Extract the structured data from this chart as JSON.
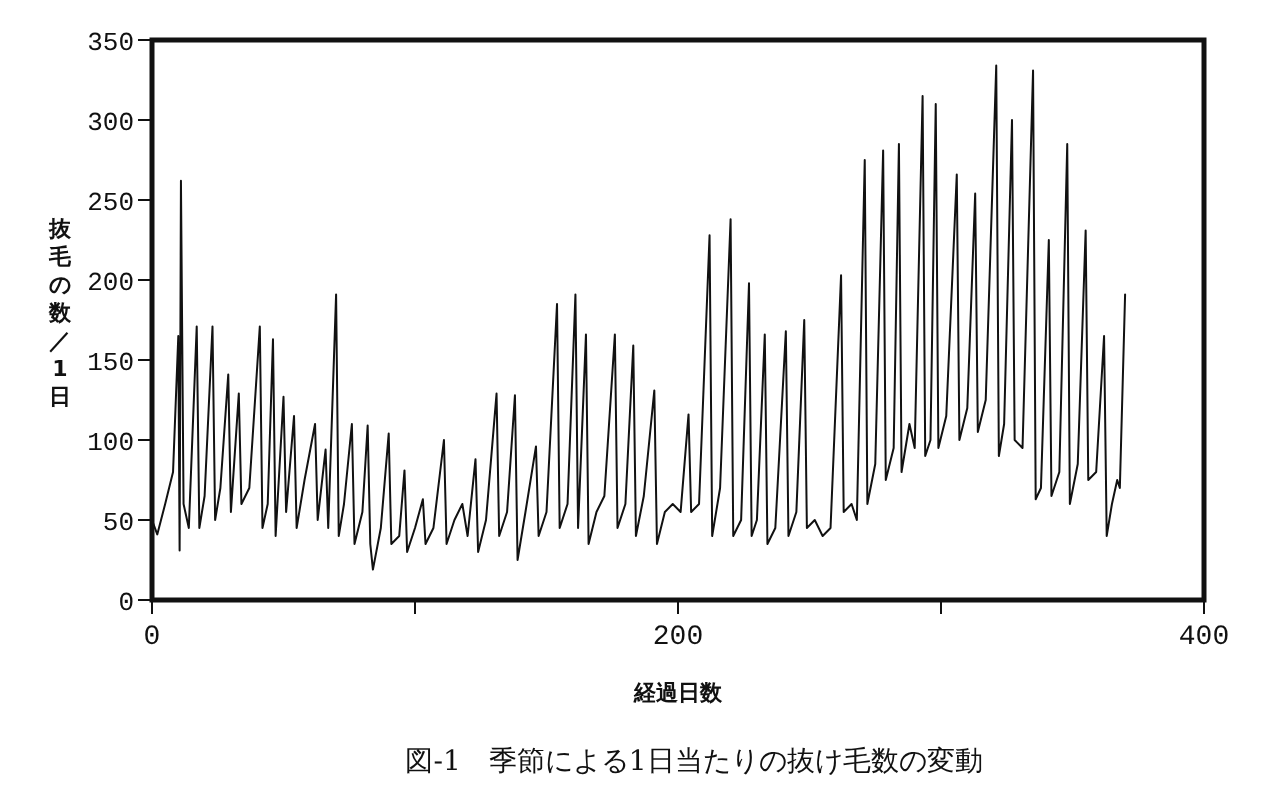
{
  "chart_data": {
    "type": "line",
    "xlabel": "経過日数",
    "ylabel": "抜毛の数／1日",
    "annotations": [
      "図-1　季節による1日当たりの抜け毛数の変動"
    ],
    "xlim": [
      0,
      400
    ],
    "xticks": [
      0,
      {
        "value": 100,
        "label": null
      },
      200,
      {
        "value": 300,
        "label": null
      },
      400
    ],
    "ylim": [
      0,
      350
    ],
    "yticks": [
      0,
      50,
      100,
      150,
      200,
      250,
      300,
      350
    ],
    "grid": false,
    "marker": "none",
    "line_style": "solid",
    "series": [
      {
        "color": "#111111",
        "x": [
          0,
          2,
          5,
          8,
          10,
          10.5,
          11,
          12,
          14,
          17,
          18,
          20,
          23,
          24,
          26,
          29,
          30,
          33,
          34,
          37,
          41,
          42,
          44,
          46,
          47,
          50,
          51,
          54,
          55,
          58,
          62,
          63,
          66,
          67,
          70,
          71,
          73,
          76,
          77,
          80,
          82,
          83,
          84,
          87,
          90,
          91,
          94,
          96,
          97,
          100,
          103,
          104,
          107,
          111,
          112,
          115,
          118,
          120,
          123,
          124,
          127,
          131,
          132,
          135,
          138,
          139,
          142,
          146,
          147,
          150,
          154,
          155,
          158,
          161,
          162,
          165,
          166,
          169,
          172,
          176,
          177,
          180,
          183,
          184,
          187,
          191,
          192,
          195,
          198,
          201,
          204,
          205,
          208,
          212,
          213,
          216,
          220,
          221,
          224,
          227,
          228,
          230,
          233,
          234,
          237,
          241,
          242,
          245,
          248,
          249,
          252,
          255,
          258,
          262,
          263,
          266,
          268,
          271,
          272,
          275,
          278,
          279,
          282,
          284,
          285,
          288,
          290,
          293,
          294,
          296,
          298,
          299,
          302,
          306,
          307,
          310,
          313,
          314,
          317,
          321,
          322,
          324,
          327,
          328,
          331,
          335,
          336,
          338,
          341,
          342,
          345,
          348,
          349,
          352,
          355,
          356,
          359,
          362,
          363,
          365,
          367,
          368,
          370
        ],
        "values": [
          50,
          41,
          60,
          80,
          165,
          31,
          262,
          60,
          45,
          171,
          45,
          65,
          171,
          50,
          70,
          141,
          55,
          129,
          60,
          70,
          171,
          45,
          60,
          163,
          40,
          127,
          55,
          115,
          45,
          75,
          110,
          50,
          94,
          45,
          191,
          40,
          60,
          110,
          35,
          55,
          109,
          35,
          19,
          45,
          104,
          35,
          40,
          81,
          30,
          45,
          63,
          35,
          45,
          100,
          35,
          50,
          60,
          40,
          88,
          30,
          50,
          129,
          40,
          55,
          128,
          25,
          55,
          96,
          40,
          55,
          185,
          45,
          60,
          191,
          45,
          166,
          35,
          55,
          65,
          166,
          45,
          60,
          159,
          40,
          65,
          131,
          35,
          55,
          60,
          55,
          116,
          55,
          60,
          228,
          40,
          70,
          238,
          40,
          50,
          198,
          40,
          50,
          166,
          35,
          45,
          168,
          40,
          55,
          175,
          45,
          50,
          40,
          45,
          203,
          55,
          60,
          50,
          275,
          60,
          85,
          281,
          75,
          95,
          285,
          80,
          110,
          95,
          315,
          90,
          100,
          310,
          95,
          115,
          266,
          100,
          120,
          254,
          105,
          125,
          334,
          90,
          110,
          300,
          100,
          95,
          331,
          63,
          70,
          225,
          65,
          80,
          285,
          60,
          85,
          231,
          75,
          80,
          165,
          40,
          60,
          75,
          70,
          191
        ]
      }
    ]
  }
}
